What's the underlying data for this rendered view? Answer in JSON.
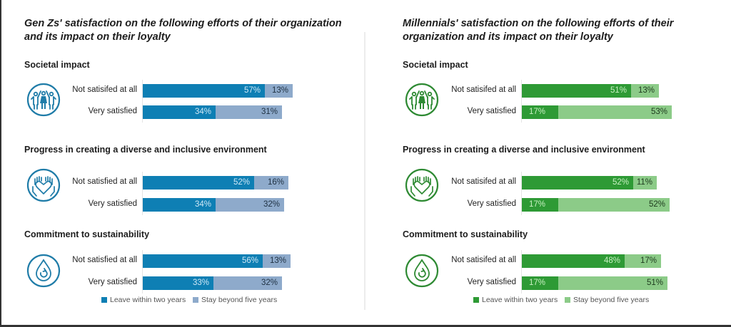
{
  "chart_data": [
    {
      "type": "bar",
      "orientation": "horizontal",
      "stacked": true,
      "title": "Gen Zs' satisfaction on the following efforts of their organization and its impact on their loyalty",
      "colors": {
        "leave": "#0e7fb4",
        "stay": "#8eaacb",
        "icon": "#1f7ca8"
      },
      "legend": [
        "Leave within two years",
        "Stay beyond five years"
      ],
      "legend_position": "bottom",
      "groups": [
        {
          "title": "Societal impact",
          "icon": "people-holding-hands-icon",
          "rows": [
            {
              "label": "Not satisifed at all",
              "leave": 57,
              "stay": 13
            },
            {
              "label": "Very satisfied",
              "leave": 34,
              "stay": 31
            }
          ]
        },
        {
          "title": "Progress in creating a diverse and inclusive environment",
          "icon": "hands-heart-icon",
          "rows": [
            {
              "label": "Not satisfied at all",
              "leave": 52,
              "stay": 16
            },
            {
              "label": "Very satisfied",
              "leave": 34,
              "stay": 32
            }
          ]
        },
        {
          "title": "Commitment to sustainability",
          "icon": "water-drop-recycle-icon",
          "rows": [
            {
              "label": "Not satisfied at all",
              "leave": 56,
              "stay": 13
            },
            {
              "label": "Very satisfied",
              "leave": 33,
              "stay": 32
            }
          ]
        }
      ]
    },
    {
      "type": "bar",
      "orientation": "horizontal",
      "stacked": true,
      "title": "Millennials' satisfaction on the following efforts of their organization and its impact on their loyalty",
      "colors": {
        "leave": "#2e9a35",
        "stay": "#8ccb88",
        "icon": "#2e8a33"
      },
      "legend": [
        "Leave within two years",
        "Stay beyond five years"
      ],
      "legend_position": "bottom",
      "groups": [
        {
          "title": "Societal impact",
          "icon": "people-holding-hands-icon",
          "rows": [
            {
              "label": "Not satisifed at all",
              "leave": 51,
              "stay": 13
            },
            {
              "label": "Very satisfied",
              "leave": 17,
              "stay": 53
            }
          ]
        },
        {
          "title": "Progress in creating a diverse and inclusive environment",
          "icon": "hands-heart-icon",
          "rows": [
            {
              "label": "Not satisifed at all",
              "leave": 52,
              "stay": 11
            },
            {
              "label": "Very satisfied",
              "leave": 17,
              "stay": 52
            }
          ]
        },
        {
          "title": "Commitment to sustainability",
          "icon": "water-drop-recycle-icon",
          "rows": [
            {
              "label": "Not satisifed at all",
              "leave": 48,
              "stay": 17
            },
            {
              "label": "Very satisfied",
              "leave": 17,
              "stay": 51
            }
          ]
        }
      ]
    }
  ]
}
